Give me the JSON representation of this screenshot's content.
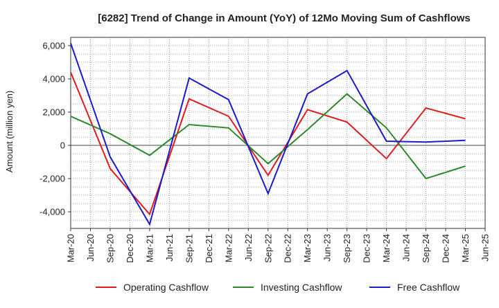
{
  "chart_data": {
    "type": "line",
    "title": "[6282]  Trend of Change in Amount (YoY) of 12Mo Moving Sum of Cashflows",
    "xlabel": "",
    "ylabel": "Amount (million yen)",
    "ylim": [
      -5000,
      6500
    ],
    "yticks": [
      -4000,
      -2000,
      0,
      2000,
      4000,
      6000
    ],
    "ytick_labels": [
      "-4,000",
      "-2,000",
      "0",
      "2,000",
      "4,000",
      "6,000"
    ],
    "categories": [
      "Mar-20",
      "Jun-20",
      "Sep-20",
      "Dec-20",
      "Mar-21",
      "Jun-21",
      "Sep-21",
      "Dec-21",
      "Mar-22",
      "Jun-22",
      "Sep-22",
      "Dec-22",
      "Mar-23",
      "Jun-23",
      "Sep-23",
      "Dec-23",
      "Mar-24",
      "Jun-24",
      "Sep-24",
      "Dec-24",
      "Mar-25",
      "Jun-25"
    ],
    "grid": true,
    "legend_position": "bottom",
    "series": [
      {
        "name": "Operating Cashflow",
        "color": "#e41a1a",
        "points": [
          {
            "x": "Mar-20",
            "y": 4400
          },
          {
            "x": "Sep-20",
            "y": -1400
          },
          {
            "x": "Mar-21",
            "y": -4150
          },
          {
            "x": "Sep-21",
            "y": 2800
          },
          {
            "x": "Mar-22",
            "y": 1750
          },
          {
            "x": "Sep-22",
            "y": -1800
          },
          {
            "x": "Mar-23",
            "y": 2150
          },
          {
            "x": "Sep-23",
            "y": 1400
          },
          {
            "x": "Mar-24",
            "y": -800
          },
          {
            "x": "Sep-24",
            "y": 2250
          },
          {
            "x": "Mar-25",
            "y": 1600
          }
        ]
      },
      {
        "name": "Investing Cashflow",
        "color": "#2a8a2a",
        "points": [
          {
            "x": "Mar-20",
            "y": 1750
          },
          {
            "x": "Sep-20",
            "y": 700
          },
          {
            "x": "Mar-21",
            "y": -600
          },
          {
            "x": "Sep-21",
            "y": 1250
          },
          {
            "x": "Mar-22",
            "y": 1050
          },
          {
            "x": "Sep-22",
            "y": -1100
          },
          {
            "x": "Mar-23",
            "y": 950
          },
          {
            "x": "Sep-23",
            "y": 3100
          },
          {
            "x": "Mar-24",
            "y": 1050
          },
          {
            "x": "Sep-24",
            "y": -2000
          },
          {
            "x": "Mar-25",
            "y": -1250
          }
        ]
      },
      {
        "name": "Free Cashflow",
        "color": "#1a1acd",
        "points": [
          {
            "x": "Mar-20",
            "y": 6150
          },
          {
            "x": "Sep-20",
            "y": -700
          },
          {
            "x": "Mar-21",
            "y": -4750
          },
          {
            "x": "Sep-21",
            "y": 4050
          },
          {
            "x": "Mar-22",
            "y": 2750
          },
          {
            "x": "Sep-22",
            "y": -2900
          },
          {
            "x": "Mar-23",
            "y": 3100
          },
          {
            "x": "Sep-23",
            "y": 4500
          },
          {
            "x": "Mar-24",
            "y": 250
          },
          {
            "x": "Sep-24",
            "y": 200
          },
          {
            "x": "Mar-25",
            "y": 300
          }
        ]
      }
    ]
  }
}
